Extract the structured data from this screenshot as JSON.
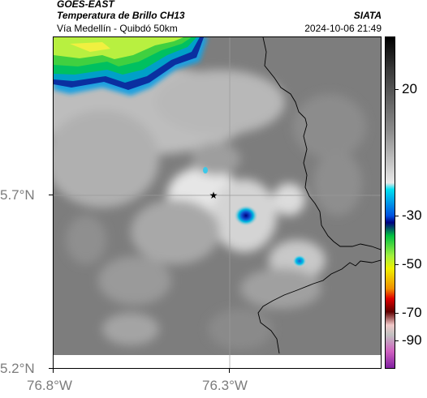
{
  "header": {
    "title_line1": "GOES-EAST",
    "title_line2": "Temperatura de Brillo CH13",
    "subtitle": "Vía Medellín - Quibdó 50km",
    "brand": "SIATA",
    "datetime": "2024-10-06 21:49"
  },
  "map": {
    "y_ticks": [
      "5.7°N",
      "5.2°N"
    ],
    "x_ticks": [
      "76.8°W",
      "76.3°W"
    ],
    "marker": "star-icon"
  },
  "colorbar": {
    "labels": [
      "20",
      "-30",
      "-50",
      "-70",
      "-90"
    ]
  }
}
